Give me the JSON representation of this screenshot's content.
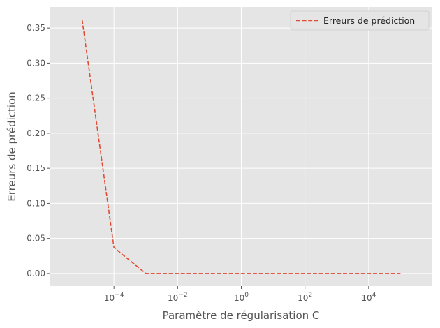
{
  "chart_data": {
    "type": "line",
    "xscale": "log",
    "xlabel": "Paramètre de régularisation C",
    "ylabel": "Erreurs de prédiction",
    "xlim": [
      1e-06,
      1000000.0
    ],
    "ylim": [
      -0.018,
      0.38
    ],
    "x_ticks": [
      {
        "value": 0.0001,
        "base": "10",
        "exp": "−4"
      },
      {
        "value": 0.01,
        "base": "10",
        "exp": "−2"
      },
      {
        "value": 1,
        "base": "10",
        "exp": "0"
      },
      {
        "value": 100,
        "base": "10",
        "exp": "2"
      },
      {
        "value": 10000,
        "base": "10",
        "exp": "4"
      }
    ],
    "y_ticks": [
      0.0,
      0.05,
      0.1,
      0.15,
      0.2,
      0.25,
      0.3,
      0.35
    ],
    "y_tick_labels": [
      "0.00",
      "0.05",
      "0.10",
      "0.15",
      "0.20",
      "0.25",
      "0.30",
      "0.35"
    ],
    "grid": true,
    "legend_position": "top-right",
    "series": [
      {
        "name": "Erreurs de prédiction",
        "color": "#e24a33",
        "line_style": "dashed",
        "x": [
          1e-05,
          0.0001,
          0.001,
          0.01,
          0.1,
          1,
          10,
          100,
          1000,
          10000,
          100000
        ],
        "values": [
          0.362,
          0.037,
          0.0,
          0.0,
          0.0,
          0.0,
          0.0,
          0.0,
          0.0,
          0.0,
          0.0
        ]
      }
    ]
  },
  "colors": {
    "plot_background": "#e5e5e5",
    "grid": "#ffffff",
    "text": "#555555"
  }
}
